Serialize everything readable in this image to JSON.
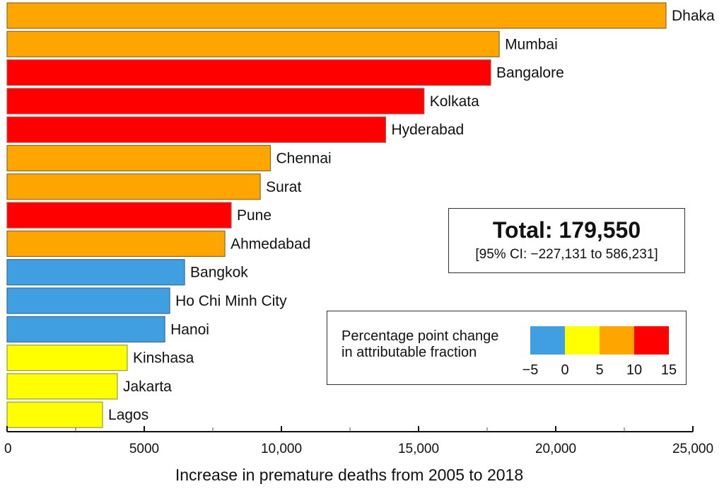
{
  "chart_data": {
    "type": "bar",
    "orientation": "horizontal",
    "title": "",
    "xlabel": "Increase in premature deaths from 2005 to 2018",
    "ylabel": "",
    "xlim": [
      0,
      25000
    ],
    "xticks": [
      0,
      5000,
      10000,
      15000,
      20000,
      25000
    ],
    "xtick_labels": [
      "0",
      "5000",
      "10,000",
      "15,000",
      "20,000",
      "25,000"
    ],
    "minor_xticks": [
      2500,
      7500,
      12500,
      17500,
      22500
    ],
    "grid": false,
    "categories": [
      "Dhaka",
      "Mumbai",
      "Bangalore",
      "Kolkata",
      "Hyderabad",
      "Chennai",
      "Surat",
      "Pune",
      "Ahmedabad",
      "Bangkok",
      "Ho Chi Minh City",
      "Hanoi",
      "Kinshasa",
      "Jakarta",
      "Lagos"
    ],
    "values": [
      24020,
      17940,
      17630,
      15200,
      13800,
      9600,
      9230,
      8170,
      7940,
      6470,
      5930,
      5750,
      4380,
      4020,
      3480
    ],
    "color_class": [
      "5-10",
      "5-10",
      "10-15",
      "10-15",
      "10-15",
      "5-10",
      "5-10",
      "10-15",
      "5-10",
      "-5-0",
      "-5-0",
      "-5-0",
      "0-5",
      "0-5",
      "0-5"
    ],
    "legend": {
      "title_line1": "Percentage point change",
      "title_line2": "in attributable fraction",
      "placement": "bottom-right",
      "bins": [
        {
          "key": "-5-0",
          "color": "#3f9fe0"
        },
        {
          "key": "0-5",
          "color": "#ffff00"
        },
        {
          "key": "5-10",
          "color": "#ffa500"
        },
        {
          "key": "10-15",
          "color": "#ff0000"
        }
      ],
      "tick_labels": [
        "−5",
        "0",
        "5",
        "10",
        "15"
      ]
    },
    "annotation": {
      "total": "Total: 179,550",
      "ci": "[95% CI: −227,131 to 586,231]",
      "placement": "middle-right"
    }
  }
}
